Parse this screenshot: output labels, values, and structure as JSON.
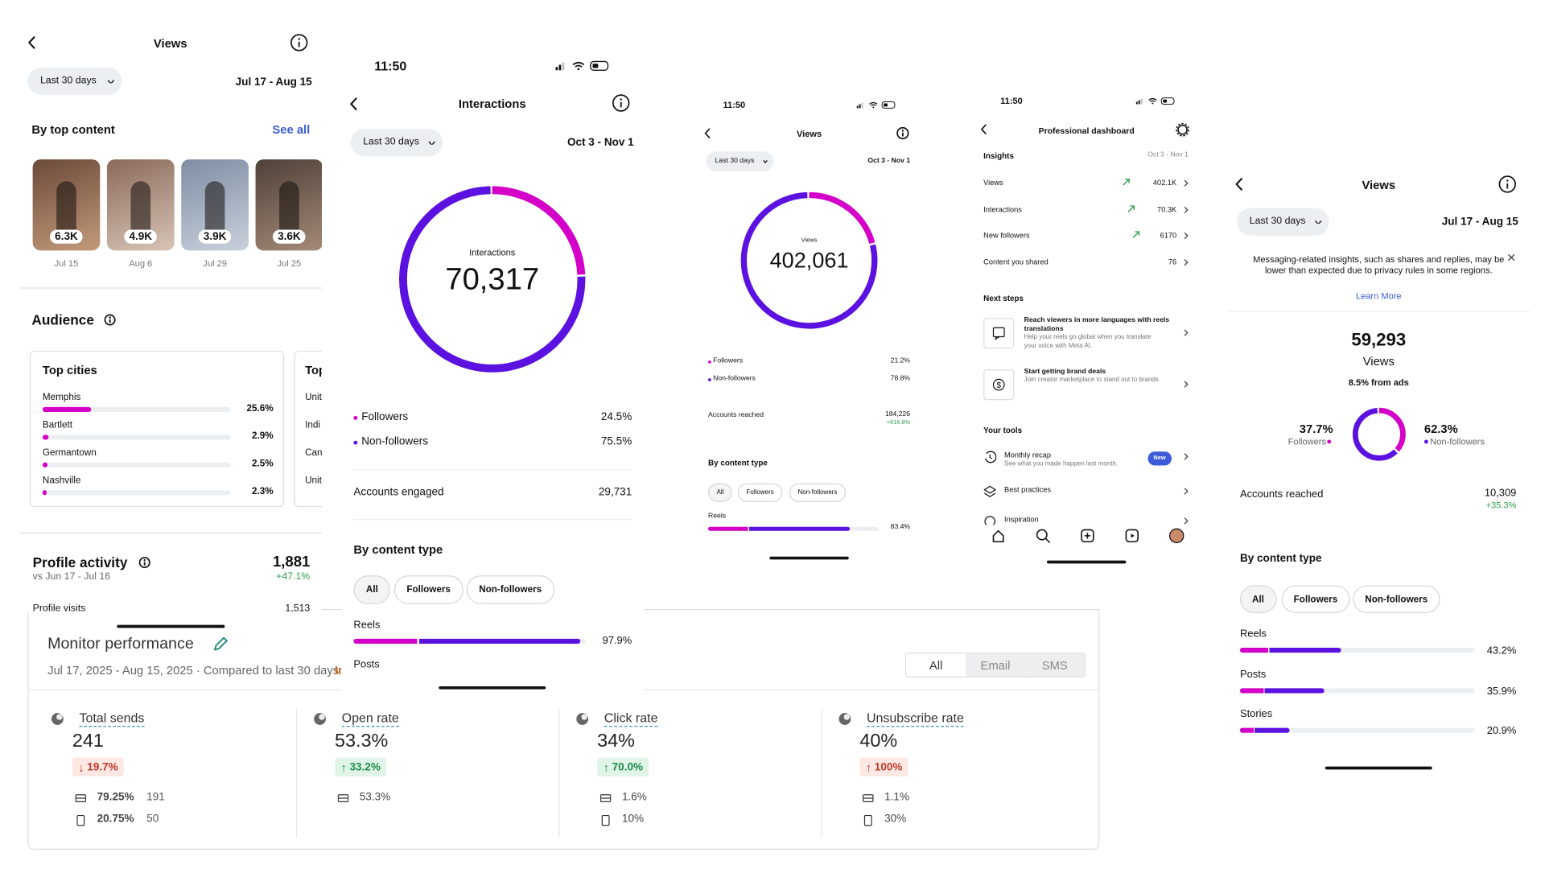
{
  "views_left": {
    "title": "Views",
    "range": "Last 30 days",
    "dates": "Jul 17 - Aug 15",
    "top_content": "By top content",
    "see_all": "See all",
    "posts": [
      {
        "count": "6.3K",
        "date": "Jul 15"
      },
      {
        "count": "4.9K",
        "date": "Aug 6"
      },
      {
        "count": "3.9K",
        "date": "Jul 29"
      },
      {
        "count": "3.6K",
        "date": "Jul 25"
      }
    ],
    "audience": "Audience",
    "top_cities": "Top cities",
    "cities": [
      {
        "name": "Memphis",
        "value": 25.6,
        "value_label": "25.6%"
      },
      {
        "name": "Bartlett",
        "value": 2.9,
        "value_label": "2.9%"
      },
      {
        "name": "Germantown",
        "value": 2.5,
        "value_label": "2.5%"
      },
      {
        "name": "Nashville",
        "value": 2.3,
        "value_label": "2.3%"
      }
    ],
    "second_card": "Top",
    "second_rows": [
      "Unit",
      "Indi",
      "Can",
      "Unit"
    ],
    "profile_activity": "Profile activity",
    "profile_total": "1,881",
    "profile_change": "+47.1%",
    "compare": "vs Jun 17 - Jul 16",
    "profile_visits": "Profile visits",
    "profile_visits_value": "1,513"
  },
  "monitor": {
    "title": "Monitor performance",
    "subtitle": "Jul 17, 2025 - Aug 15, 2025 · Compared to last 30 days",
    "subtitle_extra": "In",
    "tabs": [
      "All",
      "Email",
      "SMS"
    ],
    "metrics": [
      {
        "label": "Total sends",
        "value": "241",
        "change": "19.7%",
        "rows": [
          [
            "79.25%",
            "191"
          ],
          [
            "20.75%",
            "50"
          ]
        ]
      },
      {
        "label": "Open rate",
        "value": "53.3%",
        "change": "33.2%",
        "rows": [
          [
            "53.3%"
          ]
        ]
      },
      {
        "label": "Click rate",
        "value": "34%",
        "change": "70.0%",
        "rows": [
          [
            "1.6%"
          ],
          [
            "10%"
          ]
        ]
      },
      {
        "label": "Unsubscribe rate",
        "value": "40%",
        "change": "100%",
        "rows": [
          [
            "1.1%"
          ],
          [
            "30%"
          ]
        ]
      }
    ]
  },
  "interactions": {
    "time": "11:50",
    "title": "Interactions",
    "range": "Last 30 days",
    "dates": "Oct 3 - Nov 1",
    "total_label": "Interactions",
    "total": "70,317",
    "followers": {
      "name": "Followers",
      "value": 24.5,
      "value_label": "24.5%"
    },
    "non_followers": {
      "name": "Non-followers",
      "value": 75.5,
      "value_label": "75.5%"
    },
    "accounts_label": "Accounts engaged",
    "accounts": "29,731",
    "content_type": "By content type",
    "filters": [
      "All",
      "Followers",
      "Non-followers"
    ],
    "rows": [
      {
        "name": "Reels",
        "value": 97.9,
        "value_label": "97.9%"
      }
    ],
    "next_row": "Posts"
  },
  "views_small": {
    "time": "11:50",
    "title": "Views",
    "range": "Last 30 days",
    "dates": "Oct 3 - Nov 1",
    "total_label": "Views",
    "total": "402,061",
    "followers": {
      "name": "Followers",
      "value": 21.2,
      "value_label": "21.2%"
    },
    "non_followers": {
      "name": "Non-followers",
      "value": 78.8,
      "value_label": "78.8%"
    },
    "accounts_label": "Accounts reached",
    "accounts": "184,226",
    "accounts_change": "+616.8%",
    "content_type": "By content type",
    "filters": [
      "All",
      "Followers",
      "Non-followers"
    ],
    "rows": [
      {
        "name": "Reels",
        "value": 83.4,
        "value_label": "83.4%"
      }
    ]
  },
  "dashboard": {
    "time": "11:50",
    "title": "Professional dashboard",
    "insights": "Insights",
    "dates": "Oct 3 - Nov 1",
    "metrics": [
      {
        "name": "Views",
        "value": "402.1K"
      },
      {
        "name": "Interactions",
        "value": "70.3K"
      },
      {
        "name": "New followers",
        "value": "6170"
      },
      {
        "name": "Content you shared",
        "value": "76"
      }
    ],
    "next_steps": "Next steps",
    "steps": [
      {
        "title": "Reach viewers in more languages with reels translations",
        "text": "Help your reels go global when you translate your voice with Meta AI."
      },
      {
        "title": "Start getting brand deals",
        "text": "Join creator marketplace to stand out to brands"
      }
    ],
    "your_tools": "Your tools",
    "tools": [
      {
        "title": "Monthly recap",
        "text": "See what you made happen last month.",
        "badge": "New"
      },
      {
        "title": "Best practices"
      },
      {
        "title": "Inspiration"
      }
    ]
  },
  "views_right": {
    "title": "Views",
    "range": "Last 30 days",
    "dates": "Jul 17 - Aug 15",
    "notice": "Messaging-related insights, such as shares and replies, may be lower than expected due to privacy rules in some regions.",
    "learn_more": "Learn More",
    "total": "59,293",
    "total_label": "Views",
    "ads": "8.5% from ads",
    "followers": {
      "name": "Followers",
      "value": 37.7,
      "value_label": "37.7%"
    },
    "non_followers": {
      "name": "Non-followers",
      "value": 62.3,
      "value_label": "62.3%"
    },
    "accounts_label": "Accounts reached",
    "accounts": "10,309",
    "accounts_change": "+35.3%",
    "content_type": "By content type",
    "filters": [
      "All",
      "Followers",
      "Non-followers"
    ],
    "rows": [
      {
        "name": "Reels",
        "value": 43.2,
        "value_label": "43.2%"
      },
      {
        "name": "Posts",
        "value": 35.9,
        "value_label": "35.9%"
      },
      {
        "name": "Stories",
        "value": 20.9,
        "value_label": "20.9%"
      }
    ]
  }
}
